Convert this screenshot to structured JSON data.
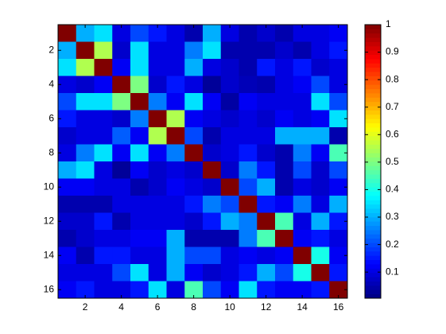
{
  "chart_data": {
    "type": "heatmap",
    "colormap": "jet",
    "xlim": [
      0.5,
      16.5
    ],
    "ylim": [
      0.5,
      16.5
    ],
    "y_reversed": true,
    "xticks": [
      2,
      4,
      6,
      8,
      10,
      12,
      14,
      16
    ],
    "yticks": [
      2,
      4,
      6,
      8,
      10,
      12,
      14,
      16
    ],
    "clim": [
      0.005,
      1
    ],
    "cticks": [
      0.1,
      0.2,
      0.3,
      0.4,
      0.5,
      0.6,
      0.7,
      0.8,
      0.9,
      1
    ],
    "values": [
      [
        1,
        0.3,
        0.35,
        0.1,
        0.2,
        0.15,
        0.1,
        0.05,
        0.3,
        0.1,
        0.05,
        0.08,
        0.05,
        0.1,
        0.1,
        0.12
      ],
      [
        0.3,
        1,
        0.55,
        0.08,
        0.35,
        0.1,
        0.1,
        0.25,
        0.35,
        0.05,
        0.05,
        0.05,
        0.08,
        0.05,
        0.1,
        0.15
      ],
      [
        0.35,
        0.55,
        1,
        0.12,
        0.35,
        0.1,
        0.1,
        0.3,
        0.1,
        0.08,
        0.05,
        0.15,
        0.1,
        0.15,
        0.08,
        0.1
      ],
      [
        0.1,
        0.08,
        0.12,
        1,
        0.5,
        0.08,
        0.15,
        0.1,
        0.03,
        0.08,
        0.06,
        0.05,
        0.1,
        0.12,
        0.2,
        0.1
      ],
      [
        0.2,
        0.35,
        0.35,
        0.5,
        1,
        0.25,
        0.12,
        0.35,
        0.12,
        0.04,
        0.12,
        0.1,
        0.1,
        0.1,
        0.35,
        0.2
      ],
      [
        0.15,
        0.1,
        0.1,
        0.08,
        0.25,
        1,
        0.55,
        0.12,
        0.1,
        0.08,
        0.1,
        0.08,
        0.12,
        0.1,
        0.12,
        0.35
      ],
      [
        0.08,
        0.1,
        0.1,
        0.22,
        0.12,
        0.55,
        1,
        0.2,
        0.05,
        0.1,
        0.1,
        0.1,
        0.3,
        0.3,
        0.3,
        0.05
      ],
      [
        0.1,
        0.25,
        0.35,
        0.12,
        0.35,
        0.12,
        0.25,
        1,
        0.08,
        0.1,
        0.15,
        0.08,
        0.05,
        0.25,
        0.12,
        0.45
      ],
      [
        0.3,
        0.35,
        0.1,
        0.03,
        0.12,
        0.08,
        0.1,
        0.08,
        1,
        0.08,
        0.25,
        0.15,
        0.05,
        0.2,
        0.08,
        0.2
      ],
      [
        0.12,
        0.12,
        0.1,
        0.1,
        0.05,
        0.08,
        0.12,
        0.1,
        0.08,
        1,
        0.2,
        0.3,
        0.05,
        0.1,
        0.08,
        0.12
      ],
      [
        0.05,
        0.05,
        0.05,
        0.1,
        0.1,
        0.1,
        0.1,
        0.15,
        0.25,
        0.2,
        1,
        0.15,
        0.12,
        0.25,
        0.1,
        0.3
      ],
      [
        0.08,
        0.08,
        0.15,
        0.05,
        0.1,
        0.1,
        0.1,
        0.08,
        0.15,
        0.3,
        0.25,
        1,
        0.45,
        0.1,
        0.3,
        0.15
      ],
      [
        0.05,
        0.08,
        0.1,
        0.1,
        0.12,
        0.12,
        0.3,
        0.05,
        0.05,
        0.05,
        0.25,
        0.45,
        1,
        0.12,
        0.15,
        0.1
      ],
      [
        0.12,
        0.05,
        0.15,
        0.15,
        0.1,
        0.1,
        0.3,
        0.2,
        0.2,
        0.1,
        0.12,
        0.1,
        0.12,
        1,
        0.4,
        0.12
      ],
      [
        0.1,
        0.1,
        0.1,
        0.2,
        0.35,
        0.1,
        0.3,
        0.12,
        0.08,
        0.1,
        0.15,
        0.3,
        0.2,
        0.4,
        1,
        0.15
      ],
      [
        0.12,
        0.15,
        0.1,
        0.1,
        0.15,
        0.35,
        0.1,
        0.45,
        0.2,
        0.12,
        0.35,
        0.15,
        0.12,
        0.12,
        0.15,
        1
      ]
    ]
  }
}
